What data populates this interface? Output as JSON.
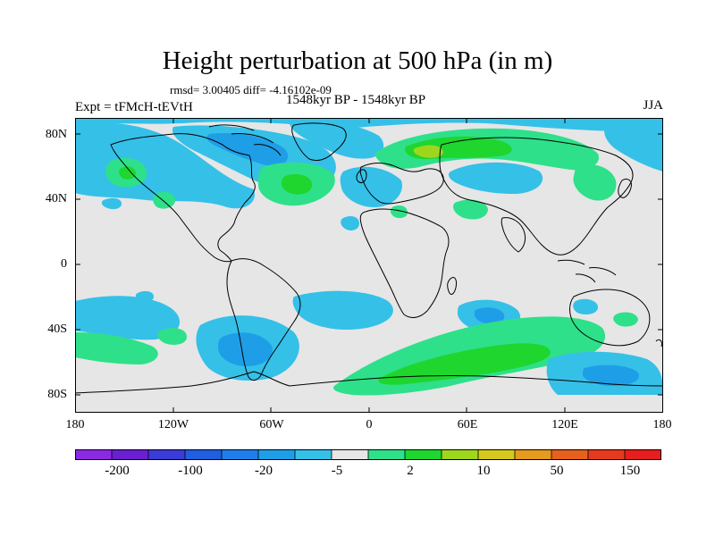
{
  "title": "Height perturbation at 500 hPa (in m)",
  "stats": "rmsd= 3.00405 diff= -4.16102e-09",
  "experiment": "Expt = tFMcH-tEVtH",
  "period": "1548kyr BP - 1548kyr BP",
  "season": "JJA",
  "lat_labels": [
    "80N",
    "40N",
    "0",
    "40S",
    "80S"
  ],
  "lon_labels": [
    "180",
    "120W",
    "60W",
    "0",
    "60E",
    "120E",
    "180"
  ],
  "colorbar": {
    "colors": [
      "#8a2be2",
      "#6a1fd0",
      "#3b3bd8",
      "#1f5fe0",
      "#1f7fe8",
      "#1f9ee8",
      "#35c0e8",
      "#e6e6e6",
      "#2ee08a",
      "#1ed62e",
      "#9ed61e",
      "#d6c81e",
      "#e69a1e",
      "#e6601e",
      "#e63a1e",
      "#e61e1e"
    ],
    "tick_labels": [
      "-200",
      "-100",
      "-20",
      "-5",
      "2",
      "10",
      "50",
      "150"
    ]
  },
  "colors": {
    "neutral": "#e6e6e6",
    "light_blue": "#35c0e8",
    "blue": "#1f9ee8",
    "light_green": "#2ee08a",
    "green": "#1ed62e",
    "yellow_green": "#9ed61e"
  }
}
